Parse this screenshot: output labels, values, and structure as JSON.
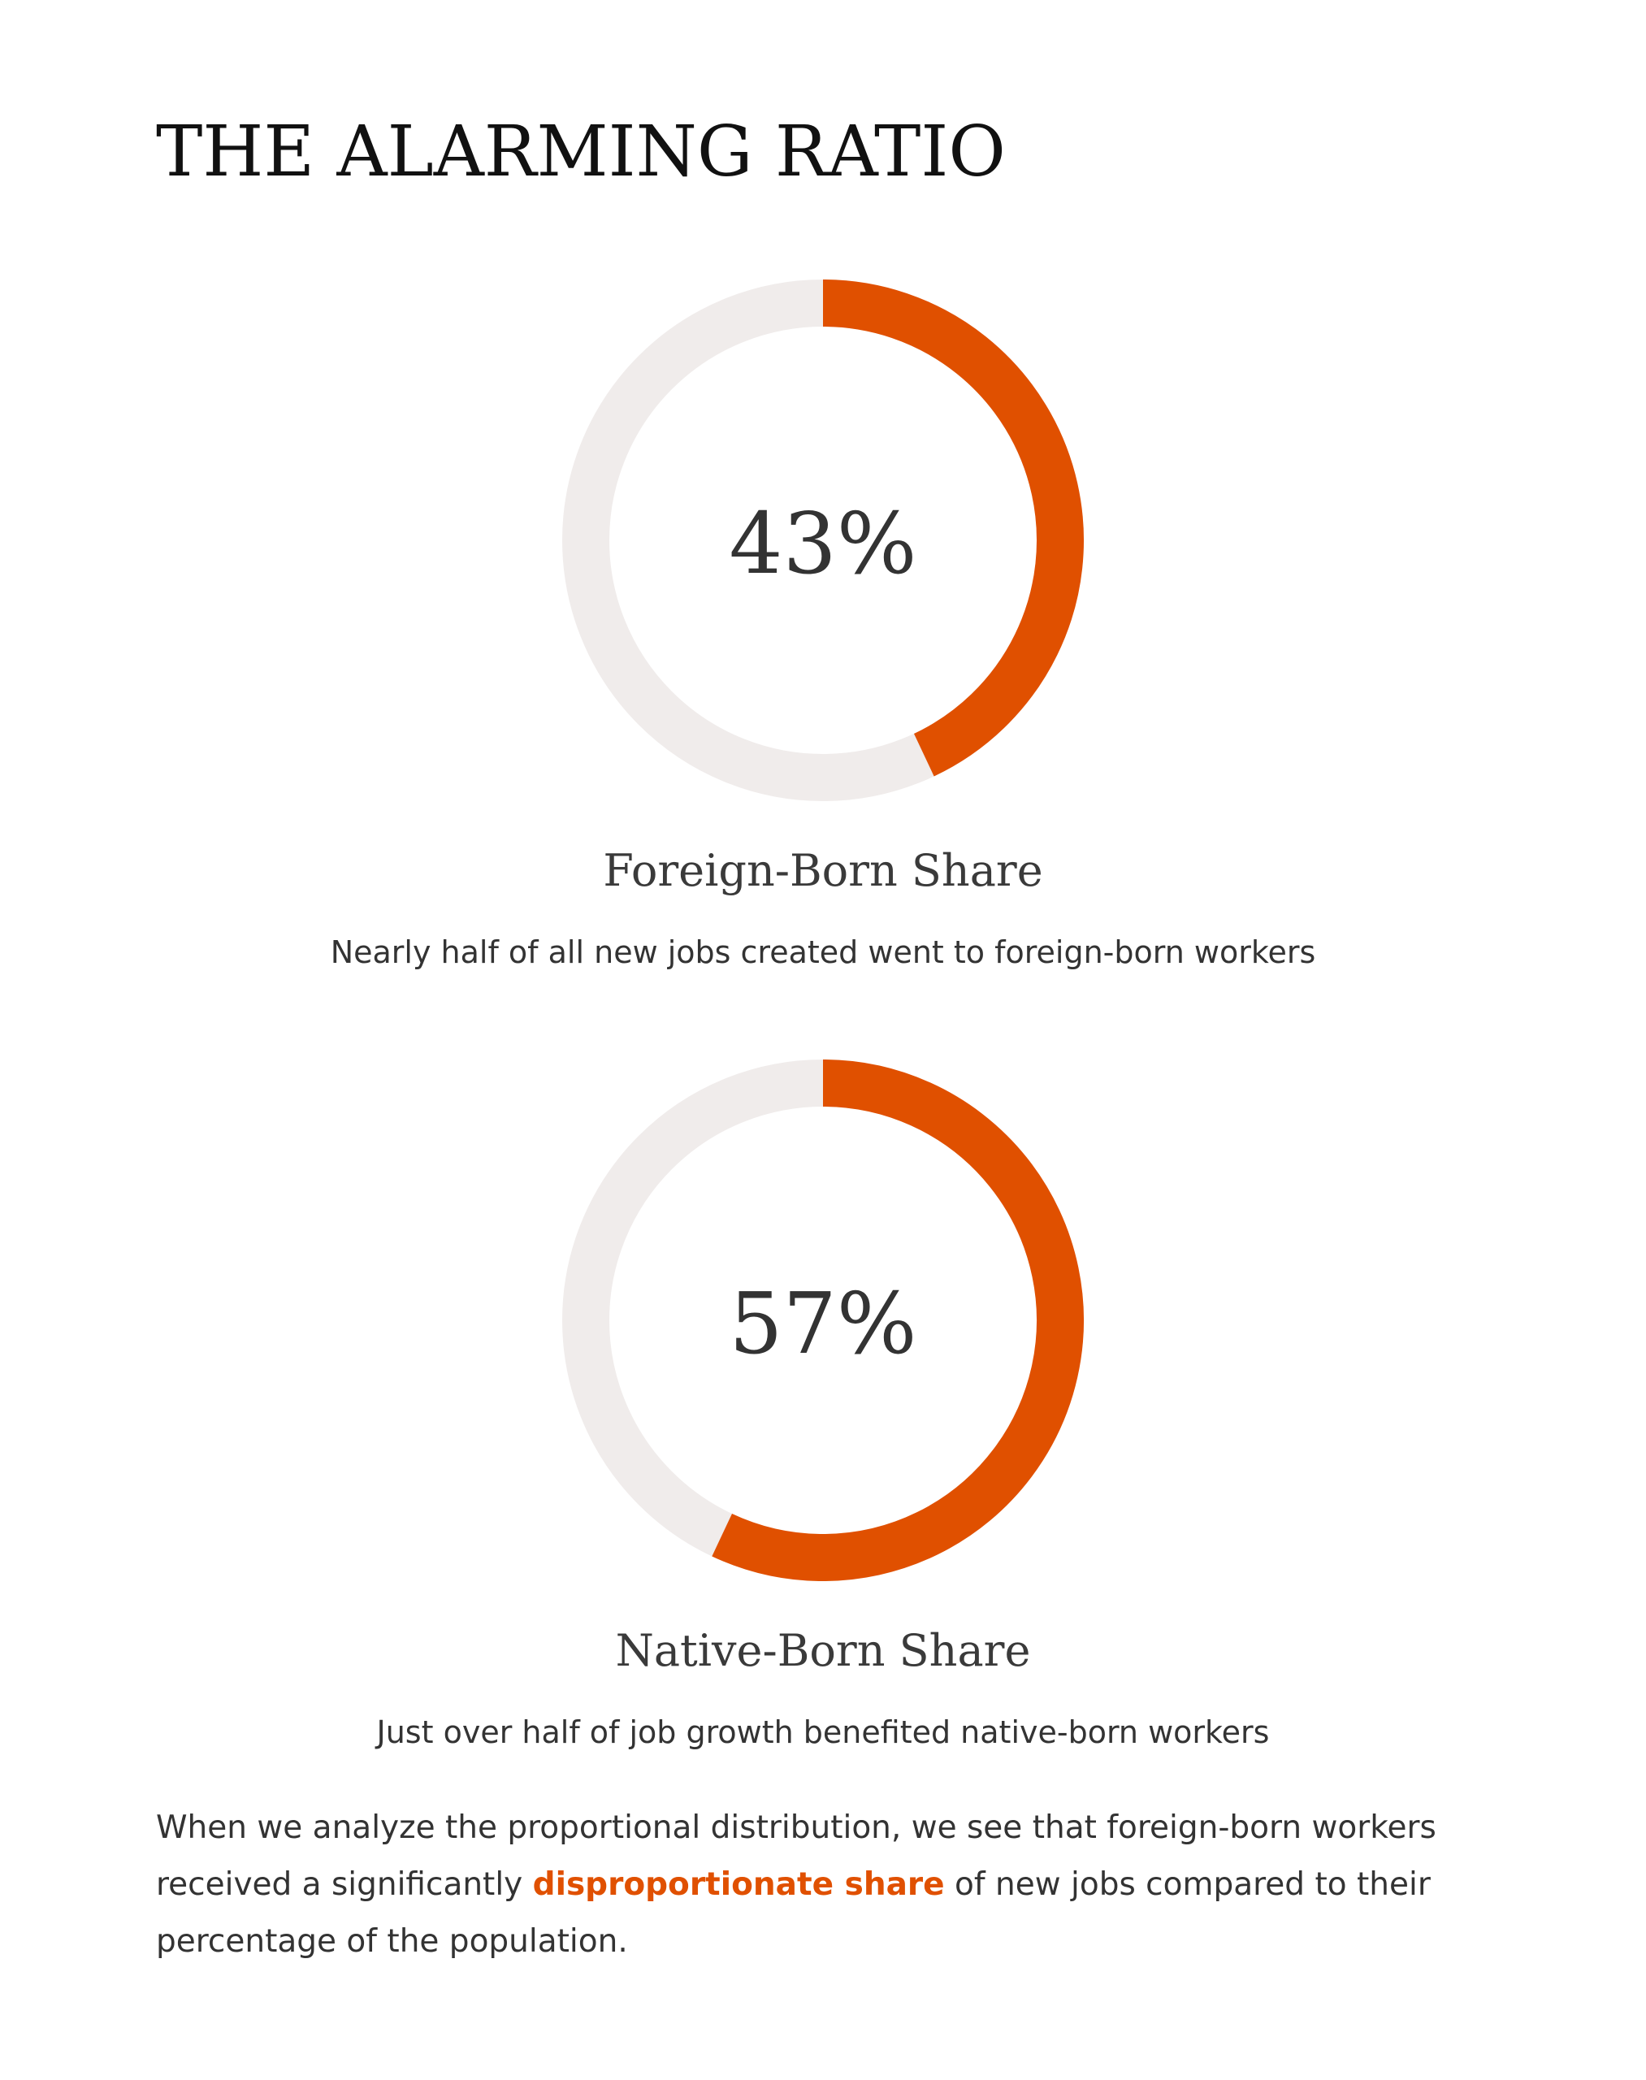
{
  "title": "THE ALARMING RATIO",
  "colors": {
    "accent": "#E05000",
    "track": "#F0ECEB",
    "text": "#333333"
  },
  "chart_data": [
    {
      "type": "pie",
      "categories": [
        "Foreign-Born Share"
      ],
      "values": [
        43
      ],
      "value_label": "43%",
      "label": "Foreign-Born Share",
      "description": "Nearly half of all new jobs created went to foreign-born workers"
    },
    {
      "type": "pie",
      "categories": [
        "Native-Born Share"
      ],
      "values": [
        57
      ],
      "value_label": "57%",
      "label": "Native-Born Share",
      "description": "Just over half of job growth benefited native-born workers"
    }
  ],
  "summary": {
    "before": "When we analyze the proportional distribution, we see that foreign-born workers received a significantly ",
    "highlight": "disproportionate share",
    "after": " of new jobs compared to their percentage of the population."
  }
}
